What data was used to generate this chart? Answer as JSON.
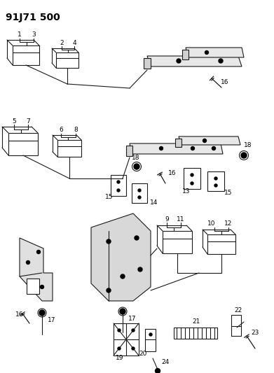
{
  "title": "91J71 500",
  "bg_color": "#ffffff",
  "line_color": "#1a1a1a",
  "fig_width": 3.91,
  "fig_height": 5.33,
  "dpi": 100
}
